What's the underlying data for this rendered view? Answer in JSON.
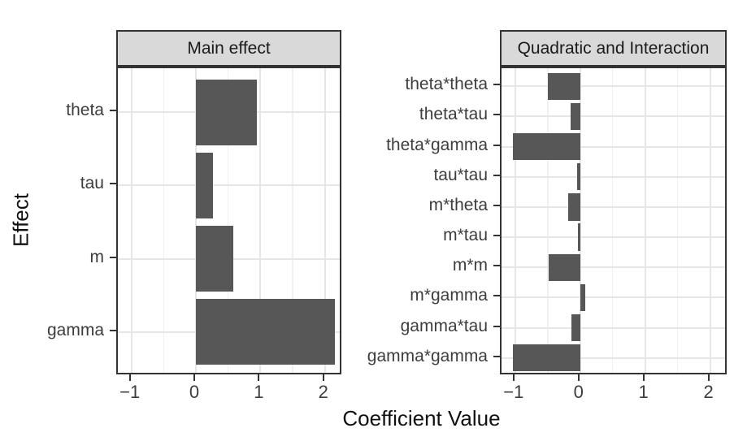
{
  "figure": {
    "x_axis_title": "Coefficient Value",
    "y_axis_title": "Effect",
    "colors": {
      "bar": "#575757",
      "strip_background": "#d9d9d9",
      "panel_border": "#333333",
      "grid_major": "#e6e6e6",
      "grid_minor": "#f0f0f0",
      "tick_mark": "#333333",
      "tick_text": "#3d3d3d",
      "title_text": "#111111"
    }
  },
  "chart_data": [
    {
      "type": "bar",
      "orientation": "horizontal",
      "facet": "Main effect",
      "categories": [
        "theta",
        "tau",
        "m",
        "gamma"
      ],
      "values": [
        0.95,
        0.26,
        0.58,
        2.15
      ],
      "xlim": [
        -1.21,
        2.28
      ],
      "x_ticks": [
        -1,
        0,
        1,
        2
      ],
      "x_tick_labels": [
        "−1",
        "0",
        "1",
        "2"
      ],
      "grid": true,
      "legend": "none"
    },
    {
      "type": "bar",
      "orientation": "horizontal",
      "facet": "Quadratic and Interaction",
      "categories": [
        "theta*theta",
        "theta*tau",
        "theta*gamma",
        "tau*tau",
        "m*theta",
        "m*tau",
        "m*m",
        "m*gamma",
        "gamma*tau",
        "gamma*gamma"
      ],
      "values": [
        -0.5,
        -0.15,
        -1.04,
        -0.05,
        -0.19,
        -0.04,
        -0.48,
        0.08,
        -0.13,
        -1.04
      ],
      "xlim": [
        -1.21,
        2.28
      ],
      "x_ticks": [
        -1,
        0,
        1,
        2
      ],
      "x_tick_labels": [
        "−1",
        "0",
        "1",
        "2"
      ],
      "grid": true,
      "legend": "none"
    }
  ]
}
